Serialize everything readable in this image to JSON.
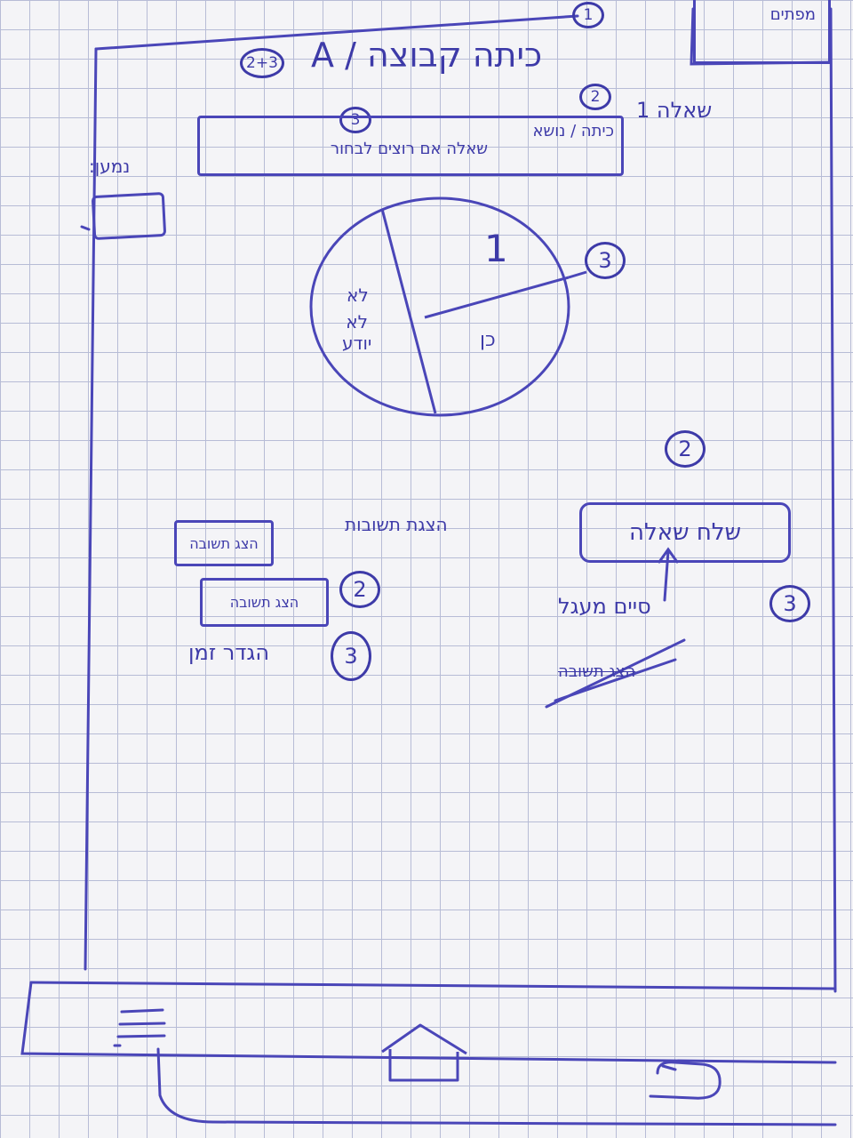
{
  "corner_note": "מפתים",
  "header": {
    "title": "כיתה קבוצה / A",
    "badge": "2+3",
    "marker_1": "1"
  },
  "subheader": {
    "marker": "2",
    "label": "שאלה 1",
    "links": "כיתה / נושא",
    "input_marker": "3",
    "input_text": "שאלה אם רוצים לבחור"
  },
  "side_note": "נמען:",
  "pie": {
    "marker": "3",
    "slices": [
      "1",
      "כן",
      "לא",
      "לא\nיודע"
    ]
  },
  "right_panel": {
    "marker": "2",
    "button_label": "שלח שאלה",
    "sub_marker": "3",
    "sub_label": "סיים מעגל",
    "struck_text": "הצג תשובה"
  },
  "left_panel": {
    "heading": "הצגת תשובות",
    "button1": "הצג תשובה",
    "button2": "הצג תשובה",
    "marker": "2",
    "bottom_marker": "3",
    "bottom_label": "הגדר זמן"
  },
  "nav_bar": {
    "menu_icon": "hamburger-menu-icon",
    "home_icon": "home-icon",
    "back_icon": "back-arrow-icon"
  }
}
